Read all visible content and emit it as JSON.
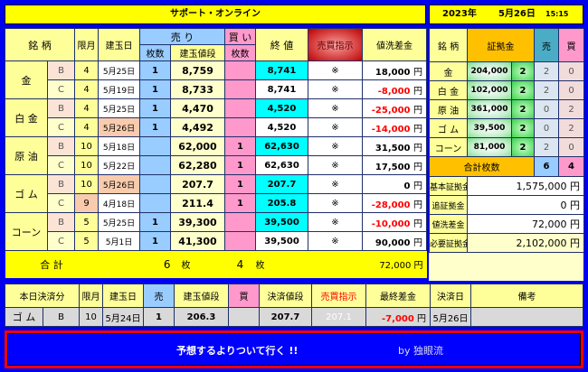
{
  "title": "サポート・オンライン",
  "date": {
    "year": "2023年",
    "day": "5月26日",
    "time": "15:15"
  },
  "main": {
    "headers": {
      "name": "銘 柄",
      "month": "限月",
      "date": "建玉日",
      "sell": "売 り",
      "buy": "買 い",
      "sell_qty": "枚数",
      "price": "建玉値段",
      "buy_qty": "枚数",
      "close": "終 値",
      "instruction": "売買指示",
      "diff": "値洗差金"
    },
    "groups": [
      {
        "name": "金",
        "rows": [
          {
            "t": "B",
            "m": "4",
            "d": "5月25日",
            "s": "1",
            "p": "8,759",
            "b": "",
            "c": "8,741",
            "i": "※",
            "v": "18,000",
            "neg": false
          },
          {
            "t": "C",
            "m": "4",
            "d": "5月19日",
            "s": "1",
            "p": "8,733",
            "b": "",
            "c": "8,741",
            "i": "※",
            "v": "-8,000",
            "neg": true
          }
        ]
      },
      {
        "name": "白 金",
        "rows": [
          {
            "t": "B",
            "m": "4",
            "d": "5月25日",
            "s": "1",
            "p": "4,470",
            "b": "",
            "c": "4,520",
            "i": "※",
            "v": "-25,000",
            "neg": true
          },
          {
            "t": "C",
            "m": "4",
            "d": "5月26日",
            "s": "1",
            "p": "4,492",
            "b": "",
            "c": "4,520",
            "i": "※",
            "v": "-14,000",
            "neg": true
          }
        ]
      },
      {
        "name": "原 油",
        "rows": [
          {
            "t": "B",
            "m": "10",
            "d": "5月18日",
            "s": "",
            "p": "62,000",
            "b": "1",
            "c": "62,630",
            "i": "※",
            "v": "31,500",
            "neg": false
          },
          {
            "t": "C",
            "m": "10",
            "d": "5月22日",
            "s": "",
            "p": "62,280",
            "b": "1",
            "c": "62,630",
            "i": "※",
            "v": "17,500",
            "neg": false
          }
        ]
      },
      {
        "name": "ゴ ム",
        "rows": [
          {
            "t": "B",
            "m": "10",
            "d": "5月26日",
            "s": "",
            "p": "207.7",
            "b": "1",
            "c": "207.7",
            "i": "※",
            "v": "0",
            "neg": false
          },
          {
            "t": "C",
            "m": "9",
            "d": "4月18日",
            "s": "",
            "p": "211.4",
            "b": "1",
            "c": "205.8",
            "i": "※",
            "v": "-28,000",
            "neg": true
          }
        ]
      },
      {
        "name": "コーン",
        "rows": [
          {
            "t": "B",
            "m": "5",
            "d": "5月25日",
            "s": "1",
            "p": "39,300",
            "b": "",
            "c": "39,500",
            "i": "※",
            "v": "-10,000",
            "neg": true
          },
          {
            "t": "C",
            "m": "5",
            "d": "5月1日",
            "s": "1",
            "p": "41,300",
            "b": "",
            "c": "39,500",
            "i": "※",
            "v": "90,000",
            "neg": false
          }
        ]
      }
    ],
    "yen": "円",
    "total": {
      "label": "合 計",
      "sell": "6",
      "buy": "4",
      "unit": "枚",
      "value": "72,000"
    }
  },
  "side": {
    "headers": {
      "name": "銘 柄",
      "margin": "証拠金",
      "sell": "売",
      "buy": "買"
    },
    "rows": [
      {
        "n": "金",
        "m": "204,000",
        "q": "2",
        "s": "2",
        "b": "0"
      },
      {
        "n": "白 金",
        "m": "102,000",
        "q": "2",
        "s": "2",
        "b": "0"
      },
      {
        "n": "原 油",
        "m": "361,000",
        "q": "2",
        "s": "0",
        "b": "2"
      },
      {
        "n": "ゴ ム",
        "m": "39,500",
        "q": "2",
        "s": "0",
        "b": "2"
      },
      {
        "n": "コーン",
        "m": "81,000",
        "q": "2",
        "s": "2",
        "b": "0"
      }
    ],
    "total": {
      "label": "合計枚数",
      "sell": "6",
      "buy": "4"
    },
    "summary": [
      {
        "l": "基本証拠金",
        "v": "1,575,000"
      },
      {
        "l": "追証拠金",
        "v": "0"
      },
      {
        "l": "値洗差金",
        "v": "72,000"
      },
      {
        "l": "必要証拠金",
        "v": "2,102,000"
      }
    ]
  },
  "settle": {
    "headers": {
      "name": "本日決済分",
      "month": "限月",
      "date": "建玉日",
      "sell": "売",
      "price": "建玉値段",
      "buy": "買",
      "close": "決済値段",
      "instruction": "売買指示",
      "final": "最終差金",
      "settle_date": "決済日",
      "note": "備考"
    },
    "row": {
      "name": "ゴ ム",
      "t": "B",
      "m": "10",
      "d": "5月24日",
      "s": "1",
      "p": "206.3",
      "b": "",
      "c": "207.7",
      "i": "207.1",
      "f": "-7,000",
      "sd": "5月26日",
      "note": ""
    }
  },
  "banner": {
    "text": "予想するよりついて行く !!",
    "by": "by 独眼流"
  }
}
